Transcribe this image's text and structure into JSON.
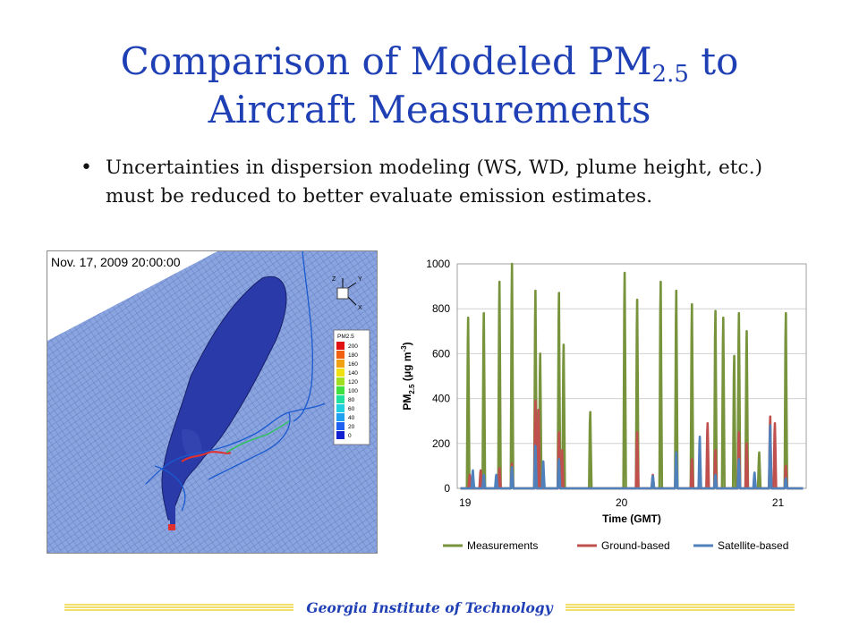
{
  "slide": {
    "title_line1_a": "Comparison of Modeled PM",
    "title_sub": "2.5",
    "title_line1_b": " to",
    "title_line2": "Aircraft Measurements",
    "bullet_symbol": "•",
    "bullet_text": "Uncertainties in dispersion modeling (WS, WD, plume height, etc.) must be reduced to better evaluate emission estimates.",
    "footer": "Georgia Institute of Technology",
    "colors": {
      "title": "#1f3fb5",
      "footer_bar": "#f2df6b",
      "footer_text": "#1f3fb5"
    }
  },
  "simulation": {
    "timestamp": "Nov. 17, 2009 20:00:00",
    "axis_labels": [
      "Z",
      "Y",
      "X"
    ],
    "legend_title": "PM2.5",
    "legend_values": [
      "200",
      "180",
      "160",
      "140",
      "120",
      "100",
      "80",
      "60",
      "40",
      "20",
      "0"
    ],
    "legend_colors": [
      "#e01010",
      "#f06010",
      "#f0a010",
      "#f0e010",
      "#a0e020",
      "#40e040",
      "#20e0a0",
      "#20d0e0",
      "#20a0f0",
      "#2060f0",
      "#1020d0"
    ],
    "background_color": "#7f9ad8",
    "plume_color": "#2a3aa8"
  },
  "chart_data": {
    "type": "line",
    "xlabel": "Time (GMT)",
    "ylabel": "PM2.5 (μg m-3)",
    "ylabel_main": "PM",
    "ylabel_sub": "2.5",
    "ylabel_rest": " (μg m",
    "ylabel_sup": "-3",
    "ylabel_close": ")",
    "x_ticks": [
      "19",
      "20",
      "21"
    ],
    "y_ticks": [
      "0",
      "200",
      "400",
      "600",
      "800",
      "1000"
    ],
    "xlim": [
      18.95,
      21.18
    ],
    "ylim": [
      0,
      1000
    ],
    "grid": "horizontal",
    "legend_position": "bottom",
    "series": [
      {
        "name": "Measurements",
        "color": "#77933c",
        "peaks": [
          [
            19.02,
            760
          ],
          [
            19.12,
            780
          ],
          [
            19.22,
            920
          ],
          [
            19.3,
            1000
          ],
          [
            19.45,
            880
          ],
          [
            19.48,
            600
          ],
          [
            19.6,
            870
          ],
          [
            19.63,
            640
          ],
          [
            19.8,
            340
          ],
          [
            20.02,
            960
          ],
          [
            20.1,
            840
          ],
          [
            20.25,
            920
          ],
          [
            20.35,
            880
          ],
          [
            20.45,
            820
          ],
          [
            20.6,
            790
          ],
          [
            20.65,
            760
          ],
          [
            20.72,
            590
          ],
          [
            20.75,
            780
          ],
          [
            20.8,
            700
          ],
          [
            20.88,
            160
          ],
          [
            20.95,
            130
          ],
          [
            21.05,
            780
          ]
        ]
      },
      {
        "name": "Ground-based",
        "color": "#c0504d",
        "peaks": [
          [
            19.03,
            60
          ],
          [
            19.1,
            80
          ],
          [
            19.22,
            90
          ],
          [
            19.3,
            110
          ],
          [
            19.45,
            390
          ],
          [
            19.47,
            350
          ],
          [
            19.6,
            250
          ],
          [
            19.62,
            170
          ],
          [
            20.1,
            250
          ],
          [
            20.2,
            60
          ],
          [
            20.35,
            110
          ],
          [
            20.45,
            130
          ],
          [
            20.55,
            290
          ],
          [
            20.6,
            170
          ],
          [
            20.75,
            250
          ],
          [
            20.8,
            200
          ],
          [
            20.95,
            320
          ],
          [
            20.98,
            290
          ],
          [
            21.05,
            100
          ]
        ]
      },
      {
        "name": "Satellite-based",
        "color": "#4f81bd",
        "peaks": [
          [
            19.05,
            80
          ],
          [
            19.12,
            60
          ],
          [
            19.2,
            60
          ],
          [
            19.3,
            95
          ],
          [
            19.45,
            190
          ],
          [
            19.5,
            120
          ],
          [
            19.6,
            130
          ],
          [
            20.2,
            55
          ],
          [
            20.35,
            160
          ],
          [
            20.5,
            230
          ],
          [
            20.6,
            60
          ],
          [
            20.75,
            130
          ],
          [
            20.85,
            70
          ],
          [
            20.95,
            280
          ],
          [
            21.05,
            45
          ]
        ]
      }
    ]
  }
}
